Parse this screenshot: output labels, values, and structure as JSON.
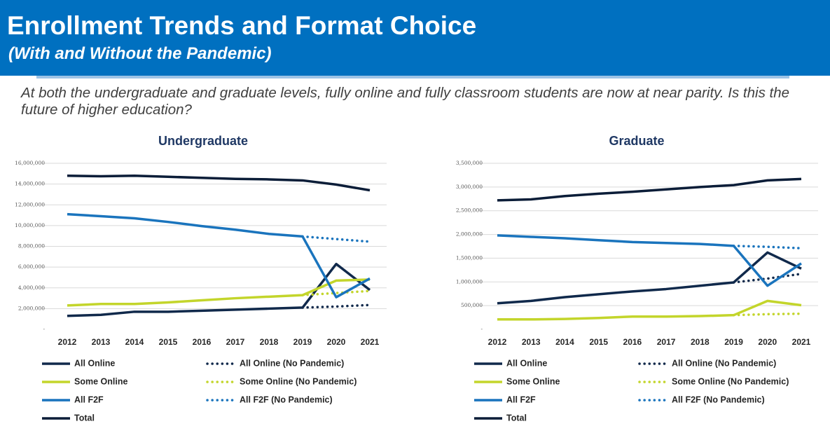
{
  "header": {
    "title": "Enrollment Trends and Format Choice",
    "subtitle": "(With and Without the Pandemic)"
  },
  "description": "At both the undergraduate and graduate levels, fully online and fully classroom students are now at near parity. Is this the future of higher education?",
  "chart_data": [
    {
      "type": "line",
      "title": "Undergraduate",
      "x": [
        2012,
        2013,
        2014,
        2015,
        2016,
        2017,
        2018,
        2019,
        2020,
        2021
      ],
      "ylim": [
        0,
        16000000
      ],
      "yticks": [
        {
          "value": 0,
          "label": "-"
        },
        {
          "value": 2000000,
          "label": "2,000,000"
        },
        {
          "value": 4000000,
          "label": "4,000,000"
        },
        {
          "value": 6000000,
          "label": "6,000,000"
        },
        {
          "value": 8000000,
          "label": "8,000,000"
        },
        {
          "value": 10000000,
          "label": "10,000,000"
        },
        {
          "value": 12000000,
          "label": "12,000,000"
        },
        {
          "value": 14000000,
          "label": "14,000,000"
        },
        {
          "value": 16000000,
          "label": "16,000,000"
        }
      ],
      "grid": true,
      "series": [
        {
          "name": "All Online",
          "color": "#10294b",
          "style": "solid",
          "values": [
            1300000,
            1400000,
            1700000,
            1700000,
            1800000,
            1900000,
            2000000,
            2100000,
            6300000,
            3800000
          ]
        },
        {
          "name": "All Online (No Pandemic)",
          "color": "#10294b",
          "style": "dotted",
          "values": [
            null,
            null,
            null,
            null,
            null,
            null,
            null,
            2100000,
            2200000,
            2350000
          ]
        },
        {
          "name": "Some Online",
          "color": "#c3d52b",
          "style": "solid",
          "values": [
            2300000,
            2450000,
            2450000,
            2600000,
            2800000,
            3000000,
            3150000,
            3300000,
            4700000,
            4800000
          ]
        },
        {
          "name": "Some Online (No Pandemic)",
          "color": "#c3d52b",
          "style": "dotted",
          "values": [
            null,
            null,
            null,
            null,
            null,
            null,
            null,
            3300000,
            3500000,
            3700000
          ]
        },
        {
          "name": "All F2F",
          "color": "#1a74bd",
          "style": "solid",
          "values": [
            11100000,
            10900000,
            10700000,
            10350000,
            9950000,
            9600000,
            9200000,
            8950000,
            3100000,
            4900000
          ]
        },
        {
          "name": "All F2F (No Pandemic)",
          "color": "#1a74bd",
          "style": "dotted",
          "values": [
            null,
            null,
            null,
            null,
            null,
            null,
            null,
            8950000,
            8700000,
            8450000
          ]
        },
        {
          "name": "Total",
          "color": "#0b1d38",
          "style": "solid",
          "values": [
            14800000,
            14750000,
            14800000,
            14700000,
            14600000,
            14500000,
            14450000,
            14350000,
            13950000,
            13400000
          ]
        }
      ]
    },
    {
      "type": "line",
      "title": "Graduate",
      "x": [
        2012,
        2013,
        2014,
        2015,
        2016,
        2017,
        2018,
        2019,
        2020,
        2021
      ],
      "ylim": [
        0,
        3500000
      ],
      "yticks": [
        {
          "value": 0,
          "label": "-"
        },
        {
          "value": 500000,
          "label": "500,000"
        },
        {
          "value": 1000000,
          "label": "1,000,000"
        },
        {
          "value": 1500000,
          "label": "1,500,000"
        },
        {
          "value": 2000000,
          "label": "2,000,000"
        },
        {
          "value": 2500000,
          "label": "2,500,000"
        },
        {
          "value": 3000000,
          "label": "3,000,000"
        },
        {
          "value": 3500000,
          "label": "3,500,000"
        }
      ],
      "grid": true,
      "series": [
        {
          "name": "All Online",
          "color": "#10294b",
          "style": "solid",
          "values": [
            550000,
            600000,
            680000,
            740000,
            800000,
            850000,
            920000,
            990000,
            1620000,
            1280000
          ]
        },
        {
          "name": "All Online (No Pandemic)",
          "color": "#10294b",
          "style": "dotted",
          "values": [
            null,
            null,
            null,
            null,
            null,
            null,
            null,
            990000,
            1070000,
            1170000
          ]
        },
        {
          "name": "Some Online",
          "color": "#c3d52b",
          "style": "solid",
          "values": [
            210000,
            210000,
            220000,
            240000,
            270000,
            270000,
            280000,
            300000,
            600000,
            510000
          ]
        },
        {
          "name": "Some Online (No Pandemic)",
          "color": "#c3d52b",
          "style": "dotted",
          "values": [
            null,
            null,
            null,
            null,
            null,
            null,
            null,
            300000,
            320000,
            330000
          ]
        },
        {
          "name": "All F2F",
          "color": "#1a74bd",
          "style": "solid",
          "values": [
            1980000,
            1950000,
            1920000,
            1880000,
            1840000,
            1820000,
            1800000,
            1760000,
            920000,
            1390000
          ]
        },
        {
          "name": "All F2F (No Pandemic)",
          "color": "#1a74bd",
          "style": "dotted",
          "values": [
            null,
            null,
            null,
            null,
            null,
            null,
            null,
            1760000,
            1740000,
            1710000
          ]
        },
        {
          "name": "Total",
          "color": "#0b1d38",
          "style": "solid",
          "values": [
            2720000,
            2740000,
            2810000,
            2860000,
            2900000,
            2950000,
            3000000,
            3040000,
            3140000,
            3170000
          ]
        }
      ]
    }
  ]
}
